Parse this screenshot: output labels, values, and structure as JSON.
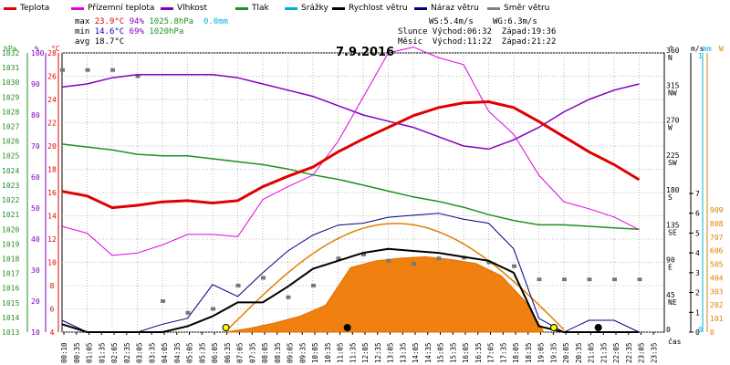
{
  "chart_data": {
    "type": "line",
    "title": "7.9.2016",
    "legend": [
      {
        "name": "Teplota",
        "color": "#e00000"
      },
      {
        "name": "Přízemní teplota",
        "color": "#e000e0"
      },
      {
        "name": "Vlhkost",
        "color": "#8000c0"
      },
      {
        "name": "Tlak",
        "color": "#209020"
      },
      {
        "name": "Srážky",
        "color": "#00b0e0"
      },
      {
        "name": "Rychlost větru",
        "color": "#000000"
      },
      {
        "name": "Náraz větru",
        "color": "#000080"
      },
      {
        "name": "Směr větru",
        "color": "#808080"
      }
    ],
    "stats": {
      "max": {
        "label": "max",
        "temp": "23.9°C",
        "hum": "94%",
        "press": "1025.8hPa",
        "rain": "0.0mm"
      },
      "min": {
        "label": "min",
        "temp": "14.6°C",
        "hum": "69%",
        "press": "1020hPa"
      },
      "avg": {
        "label": "avg",
        "temp": "18.7°C"
      }
    },
    "wind_info": {
      "ws": "WS:5.4m/s",
      "wg": "WG:6.3m/s"
    },
    "sun_info": "Slunce Východ:06:32  Západ:19:36",
    "moon_info": "Měsíc  Východ:11:22  Západ:21:22",
    "axes": {
      "hpa": {
        "unit": "hPa",
        "color": "#209020",
        "ticks": [
          "1032",
          "1031",
          "1030",
          "1029",
          "1028",
          "1027",
          "1026",
          "1025",
          "1024",
          "1023",
          "1022",
          "1021",
          "1020",
          "1019",
          "1018",
          "1017",
          "1016",
          "1015",
          "1014",
          "1013"
        ]
      },
      "pct": {
        "unit": "%",
        "color": "#8000c0",
        "ticks": [
          "100",
          "90",
          "80",
          "70",
          "60",
          "50",
          "40",
          "30",
          "20",
          "10"
        ]
      },
      "temp": {
        "unit": "°C",
        "color": "#e00000",
        "ticks": [
          "28",
          "26",
          "24",
          "22",
          "20",
          "18",
          "16",
          "14",
          "12",
          "10",
          "8",
          "6",
          "4"
        ]
      },
      "dir": {
        "unit": "°",
        "ticks": [
          {
            "v": "360",
            "d": "N"
          },
          {
            "v": "315",
            "d": "NW"
          },
          {
            "v": "270",
            "d": "W"
          },
          {
            "v": "225",
            "d": "SW"
          },
          {
            "v": "180",
            "d": "S"
          },
          {
            "v": "135",
            "d": "SE"
          },
          {
            "v": "90",
            "d": "E"
          },
          {
            "v": "45",
            "d": "NE"
          },
          {
            "v": "0",
            "d": ""
          }
        ]
      },
      "ms": {
        "unit": "m/s",
        "ticks": [
          "7",
          "6",
          "5",
          "4",
          "3",
          "2",
          "1",
          "0"
        ]
      },
      "mm": {
        "unit": "mm",
        "color": "#00b0e0",
        "ticks": [
          "1",
          "0"
        ]
      },
      "w": {
        "unit": "W",
        "color": "#e08000",
        "ticks": [
          "909",
          "808",
          "707",
          "606",
          "505",
          "404",
          "303",
          "202",
          "101",
          "0"
        ]
      },
      "xlabel": "čas",
      "xticks": [
        "00:10",
        "00:35",
        "01:05",
        "01:35",
        "02:05",
        "02:35",
        "03:05",
        "03:35",
        "04:05",
        "04:35",
        "05:05",
        "05:35",
        "06:05",
        "06:35",
        "07:05",
        "07:35",
        "08:05",
        "08:35",
        "09:05",
        "09:35",
        "10:05",
        "10:35",
        "11:05",
        "11:35",
        "12:05",
        "12:35",
        "13:05",
        "13:35",
        "14:05",
        "14:35",
        "15:05",
        "15:35",
        "16:05",
        "16:35",
        "17:05",
        "17:35",
        "18:05",
        "18:35",
        "19:05",
        "19:35",
        "20:05",
        "20:35",
        "21:05",
        "21:35",
        "22:05",
        "22:35",
        "23:05",
        "23:35"
      ]
    },
    "series": [
      {
        "name": "Teplota",
        "unit": "°C",
        "points": [
          [
            0,
            16.1
          ],
          [
            1,
            15.7
          ],
          [
            2,
            14.7
          ],
          [
            3,
            14.9
          ],
          [
            4,
            15.2
          ],
          [
            5,
            15.3
          ],
          [
            6,
            15.1
          ],
          [
            7,
            15.3
          ],
          [
            8,
            16.5
          ],
          [
            9,
            17.4
          ],
          [
            10,
            18.2
          ],
          [
            11,
            19.5
          ],
          [
            12,
            20.6
          ],
          [
            13,
            21.6
          ],
          [
            14,
            22.6
          ],
          [
            15,
            23.3
          ],
          [
            16,
            23.7
          ],
          [
            17,
            23.8
          ],
          [
            18,
            23.3
          ],
          [
            19,
            22.1
          ],
          [
            20,
            20.8
          ],
          [
            21,
            19.5
          ],
          [
            22,
            18.4
          ],
          [
            23,
            17.1
          ]
        ]
      },
      {
        "name": "Přízemní teplota",
        "unit": "°C",
        "points": [
          [
            0,
            13.1
          ],
          [
            1,
            12.5
          ],
          [
            2,
            10.6
          ],
          [
            3,
            10.8
          ],
          [
            4,
            11.5
          ],
          [
            5,
            12.4
          ],
          [
            6,
            12.4
          ],
          [
            7,
            12.2
          ],
          [
            8,
            15.4
          ],
          [
            9,
            16.5
          ],
          [
            10,
            17.5
          ],
          [
            11,
            20.4
          ],
          [
            12,
            24.2
          ],
          [
            13,
            28.0
          ],
          [
            14,
            28.5
          ],
          [
            15,
            27.6
          ],
          [
            16,
            27.0
          ],
          [
            17,
            23.0
          ],
          [
            18,
            21.0
          ],
          [
            19,
            17.5
          ],
          [
            20,
            15.2
          ],
          [
            21,
            14.6
          ],
          [
            22,
            13.9
          ],
          [
            23,
            12.8
          ]
        ]
      },
      {
        "name": "Vlhkost",
        "unit": "%",
        "points": [
          [
            0,
            89
          ],
          [
            1,
            90
          ],
          [
            2,
            92
          ],
          [
            3,
            93
          ],
          [
            4,
            93
          ],
          [
            5,
            93
          ],
          [
            6,
            93
          ],
          [
            7,
            92
          ],
          [
            8,
            90
          ],
          [
            9,
            88
          ],
          [
            10,
            86
          ],
          [
            11,
            83
          ],
          [
            12,
            80
          ],
          [
            13,
            78
          ],
          [
            14,
            76
          ],
          [
            15,
            73
          ],
          [
            16,
            70
          ],
          [
            17,
            69
          ],
          [
            18,
            72
          ],
          [
            19,
            76
          ],
          [
            20,
            81
          ],
          [
            21,
            85
          ],
          [
            22,
            88
          ],
          [
            23,
            90
          ]
        ]
      },
      {
        "name": "Tlak",
        "unit": "hPa",
        "points": [
          [
            0,
            1025.8
          ],
          [
            1,
            1025.6
          ],
          [
            2,
            1025.4
          ],
          [
            3,
            1025.1
          ],
          [
            4,
            1025.0
          ],
          [
            5,
            1025.0
          ],
          [
            6,
            1024.8
          ],
          [
            7,
            1024.6
          ],
          [
            8,
            1024.4
          ],
          [
            9,
            1024.1
          ],
          [
            10,
            1023.7
          ],
          [
            11,
            1023.4
          ],
          [
            12,
            1023.0
          ],
          [
            13,
            1022.6
          ],
          [
            14,
            1022.2
          ],
          [
            15,
            1021.9
          ],
          [
            16,
            1021.5
          ],
          [
            17,
            1021.0
          ],
          [
            18,
            1020.6
          ],
          [
            19,
            1020.3
          ],
          [
            20,
            1020.3
          ],
          [
            21,
            1020.2
          ],
          [
            22,
            1020.1
          ],
          [
            23,
            1020.0
          ]
        ]
      },
      {
        "name": "Rychlost větru",
        "unit": "m/s",
        "points": [
          [
            0,
            0.4
          ],
          [
            1,
            0
          ],
          [
            2,
            0
          ],
          [
            3,
            0
          ],
          [
            4,
            0
          ],
          [
            5,
            0.3
          ],
          [
            6,
            0.8
          ],
          [
            7,
            1.5
          ],
          [
            8,
            1.5
          ],
          [
            9,
            2.3
          ],
          [
            10,
            3.2
          ],
          [
            11,
            3.6
          ],
          [
            12,
            4.0
          ],
          [
            13,
            4.2
          ],
          [
            14,
            4.1
          ],
          [
            15,
            4.0
          ],
          [
            16,
            3.8
          ],
          [
            17,
            3.6
          ],
          [
            18,
            3.0
          ],
          [
            19,
            0.3
          ],
          [
            20,
            0
          ],
          [
            21,
            0
          ],
          [
            22,
            0
          ],
          [
            23,
            0
          ]
        ]
      },
      {
        "name": "Náraz větru",
        "unit": "m/s",
        "points": [
          [
            0,
            0.6
          ],
          [
            1,
            0
          ],
          [
            2,
            0
          ],
          [
            3,
            0
          ],
          [
            4,
            0.4
          ],
          [
            5,
            0.7
          ],
          [
            6,
            2.4
          ],
          [
            7,
            1.8
          ],
          [
            8,
            3.0
          ],
          [
            9,
            4.1
          ],
          [
            10,
            4.9
          ],
          [
            11,
            5.4
          ],
          [
            12,
            5.5
          ],
          [
            13,
            5.8
          ],
          [
            14,
            5.9
          ],
          [
            15,
            6.0
          ],
          [
            16,
            5.7
          ],
          [
            17,
            5.5
          ],
          [
            18,
            4.2
          ],
          [
            19,
            0.7
          ],
          [
            20,
            0
          ],
          [
            21,
            0.6
          ],
          [
            22,
            0.6
          ],
          [
            23,
            0
          ]
        ]
      },
      {
        "name": "Směr větru",
        "unit": "°",
        "points": [
          [
            0,
            338
          ],
          [
            1,
            338
          ],
          [
            2,
            338
          ],
          [
            3,
            330
          ],
          [
            4,
            40
          ],
          [
            5,
            25
          ],
          [
            6,
            30
          ],
          [
            7,
            60
          ],
          [
            8,
            70
          ],
          [
            9,
            45
          ],
          [
            10,
            60
          ],
          [
            11,
            95
          ],
          [
            12,
            100
          ],
          [
            13,
            92
          ],
          [
            14,
            88
          ],
          [
            15,
            95
          ],
          [
            16,
            96
          ],
          [
            17,
            90
          ],
          [
            18,
            85
          ],
          [
            19,
            68
          ],
          [
            20,
            68
          ],
          [
            21,
            68
          ],
          [
            22,
            68
          ],
          [
            23,
            68
          ]
        ]
      },
      {
        "name": "Sluneční záření",
        "unit": "W",
        "points": [
          [
            6.5,
            0
          ],
          [
            7.5,
            30
          ],
          [
            8.5,
            70
          ],
          [
            9.5,
            120
          ],
          [
            10.5,
            200
          ],
          [
            11.5,
            480
          ],
          [
            12.5,
            530
          ],
          [
            13.5,
            550
          ],
          [
            14.5,
            560
          ],
          [
            15.5,
            540
          ],
          [
            16.5,
            510
          ],
          [
            17.5,
            420
          ],
          [
            18.5,
            220
          ],
          [
            19.2,
            0
          ]
        ]
      }
    ],
    "markers": [
      {
        "type": "sunrise",
        "time": 6.53
      },
      {
        "type": "moonrise",
        "time": 11.37
      },
      {
        "type": "sunset",
        "time": 19.6
      },
      {
        "type": "moonset",
        "time": 21.37
      }
    ]
  }
}
